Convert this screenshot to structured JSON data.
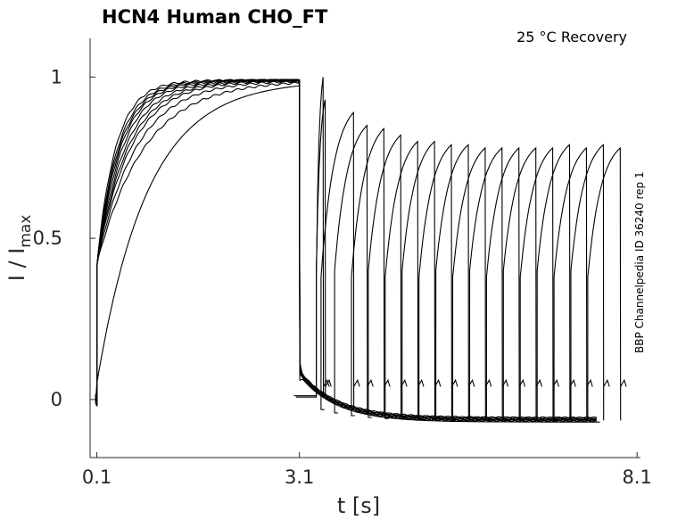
{
  "chart_data": {
    "type": "line",
    "title": "HCN4  Human  CHO_FT",
    "annotation": "25 °C  Recovery",
    "side_label": "BBP Channelpedia ID 36240 rep 1",
    "xlabel": "t [s]",
    "ylabel_main": "I / I",
    "ylabel_sub": "max",
    "xlim": [
      0.0,
      8.15
    ],
    "ylim": [
      -0.18,
      1.12
    ],
    "xticks": [
      0.1,
      3.1,
      8.1
    ],
    "xtick_labels": [
      "0.1",
      "3.1",
      "8.1"
    ],
    "yticks": [
      0,
      0.5,
      1
    ],
    "ytick_labels": [
      "0",
      "0.5",
      "1"
    ],
    "activation": {
      "start": 0.1,
      "end": 3.1,
      "jump": 0.42,
      "plateau": 0.99,
      "series_tau": [
        0.28,
        0.31,
        0.33,
        0.35,
        0.38,
        0.42,
        0.46,
        0.5,
        0.58,
        0.7
      ]
    },
    "slow_trace": {
      "jump": 0.05,
      "tau": 0.75,
      "plateau": 0.99
    },
    "deactivation": {
      "start_level": 0.08,
      "floor": -0.065,
      "tau": 0.55
    },
    "recovery_steps": [
      {
        "t": 3.45,
        "peak": 1.0
      },
      {
        "t": 3.48,
        "peak": 0.93
      },
      {
        "t": 3.9,
        "peak": 0.89
      },
      {
        "t": 4.1,
        "peak": 0.85
      },
      {
        "t": 4.35,
        "peak": 0.84
      },
      {
        "t": 4.6,
        "peak": 0.82
      },
      {
        "t": 4.85,
        "peak": 0.8
      },
      {
        "t": 5.1,
        "peak": 0.8
      },
      {
        "t": 5.35,
        "peak": 0.79
      },
      {
        "t": 5.6,
        "peak": 0.79
      },
      {
        "t": 5.85,
        "peak": 0.78
      },
      {
        "t": 6.1,
        "peak": 0.78
      },
      {
        "t": 6.35,
        "peak": 0.78
      },
      {
        "t": 6.6,
        "peak": 0.78
      },
      {
        "t": 6.85,
        "peak": 0.78
      },
      {
        "t": 7.1,
        "peak": 0.79
      },
      {
        "t": 7.35,
        "peak": 0.78
      },
      {
        "t": 7.6,
        "peak": 0.79
      },
      {
        "t": 7.85,
        "peak": 0.78
      }
    ],
    "recovery_tail_level": 0.04,
    "recovery_test_duration": 0.48,
    "grid": false,
    "legend": "none"
  }
}
